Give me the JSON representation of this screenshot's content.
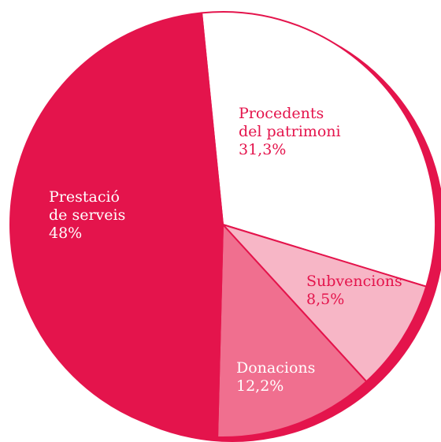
{
  "chart_data": {
    "type": "pie",
    "slices": [
      {
        "name_lines": [
          "Procedents",
          "del patrimoni"
        ],
        "value": 31.3,
        "value_label": "31,3%",
        "color": "#ffffff",
        "text_color": "#e4144c"
      },
      {
        "name_lines": [
          "Subvencions"
        ],
        "value": 8.5,
        "value_label": "8,5%",
        "color": "#f7b6c6",
        "text_color": "#e4144c"
      },
      {
        "name_lines": [
          "Donacions"
        ],
        "value": 12.2,
        "value_label": "12,2%",
        "color": "#f06f8f",
        "text_color": "#ffffff"
      },
      {
        "name_lines": [
          "Prestació",
          "de serveis"
        ],
        "value": 48,
        "value_label": "48%",
        "color": "#e4144c",
        "text_color": "#ffffff"
      }
    ],
    "colors": {
      "accent": "#e4144c",
      "outline": "#e4144c",
      "shadow": "#e4144c"
    }
  }
}
